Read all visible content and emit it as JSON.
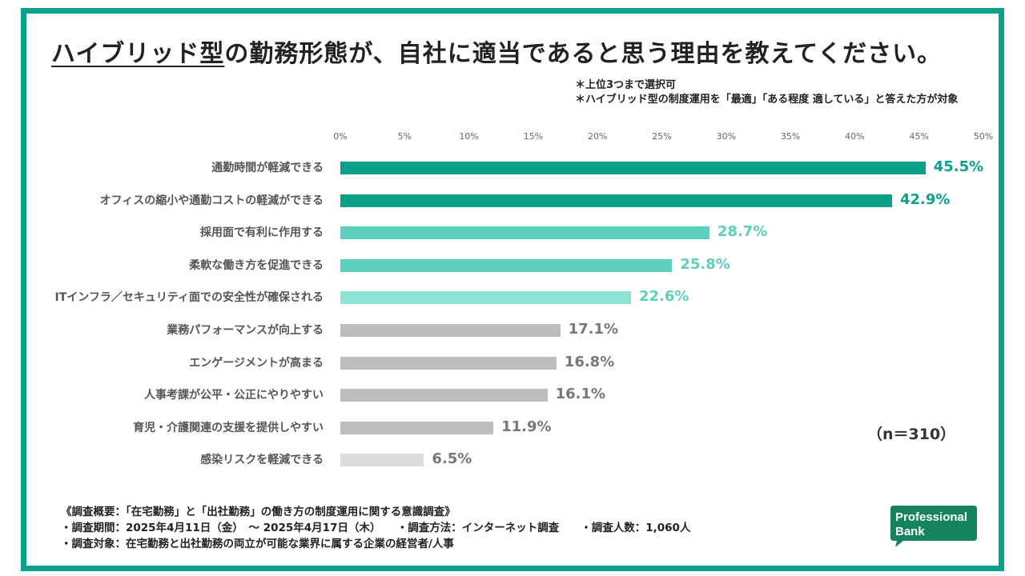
{
  "title_part1": "ハイブリッド型",
  "title_part2": "の勤務形態が、自社に適当であると思う理由を教えてください。",
  "notes": [
    "＊上位3つまで選択可",
    "＊ハイブリッド型の制度運用を「最適」「ある程度 適している」と答えた方が対象"
  ],
  "sample_size": "（n＝310）",
  "footer": [
    "《調査概要：「在宅勤務」と「出社勤務」の働き方の制度運用に関する意識調査》",
    "・調査期間：2025年4月11日（金）　〜 2025年4月17日（木）　　・調査方法：インターネット調査　　・調査人数：1,060人",
    "・調査対象：在宅勤務と出社勤務の両立が可能な業界に属する企業の経営者/人事"
  ],
  "logo": {
    "line1": "Professional",
    "line2": "Bank"
  },
  "colors": {
    "border": "#0aa08a",
    "teal_dark": "#0aa08a",
    "teal_mid": "#5ccfbd",
    "teal_light": "#8de3d5",
    "gray": "#bdbdbd",
    "gray_light": "#dcdcdc"
  },
  "chart_data": {
    "type": "bar",
    "orientation": "horizontal",
    "xlim": [
      0,
      50
    ],
    "tick_labels": [
      "0%",
      "5%",
      "10%",
      "15%",
      "20%",
      "25%",
      "30%",
      "35%",
      "40%",
      "45%",
      "50%"
    ],
    "categories": [
      "通勤時間が軽減できる",
      "オフィスの縮小や通勤コストの軽減ができる",
      "採用面で有利に作用する",
      "柔軟な働き方を促進できる",
      "ITインフラ／セキュリティ面での安全性が確保される",
      "業務パフォーマンスが向上する",
      "エンゲージメントが高まる",
      "人事考課が公平・公正にやりやすい",
      "育児・介護関連の支援を提供しやすい",
      "感染リスクを軽減できる"
    ],
    "values": [
      45.5,
      42.9,
      28.7,
      25.8,
      22.6,
      17.1,
      16.8,
      16.1,
      11.9,
      6.5
    ],
    "value_labels": [
      "45.5%",
      "42.9%",
      "28.7%",
      "25.8%",
      "22.6%",
      "17.1%",
      "16.8%",
      "16.1%",
      "11.9%",
      "6.5%"
    ],
    "bar_colors": [
      "#0aa08a",
      "#0aa08a",
      "#5ccfbd",
      "#5ccfbd",
      "#8de3d5",
      "#bdbdbd",
      "#bdbdbd",
      "#bdbdbd",
      "#bdbdbd",
      "#dcdcdc"
    ],
    "label_colors": [
      "#0aa08a",
      "#0aa08a",
      "#5ccfbd",
      "#5ccfbd",
      "#5ccfbd",
      "#777777",
      "#777777",
      "#777777",
      "#777777",
      "#777777"
    ],
    "grid": false,
    "legend": "none"
  }
}
